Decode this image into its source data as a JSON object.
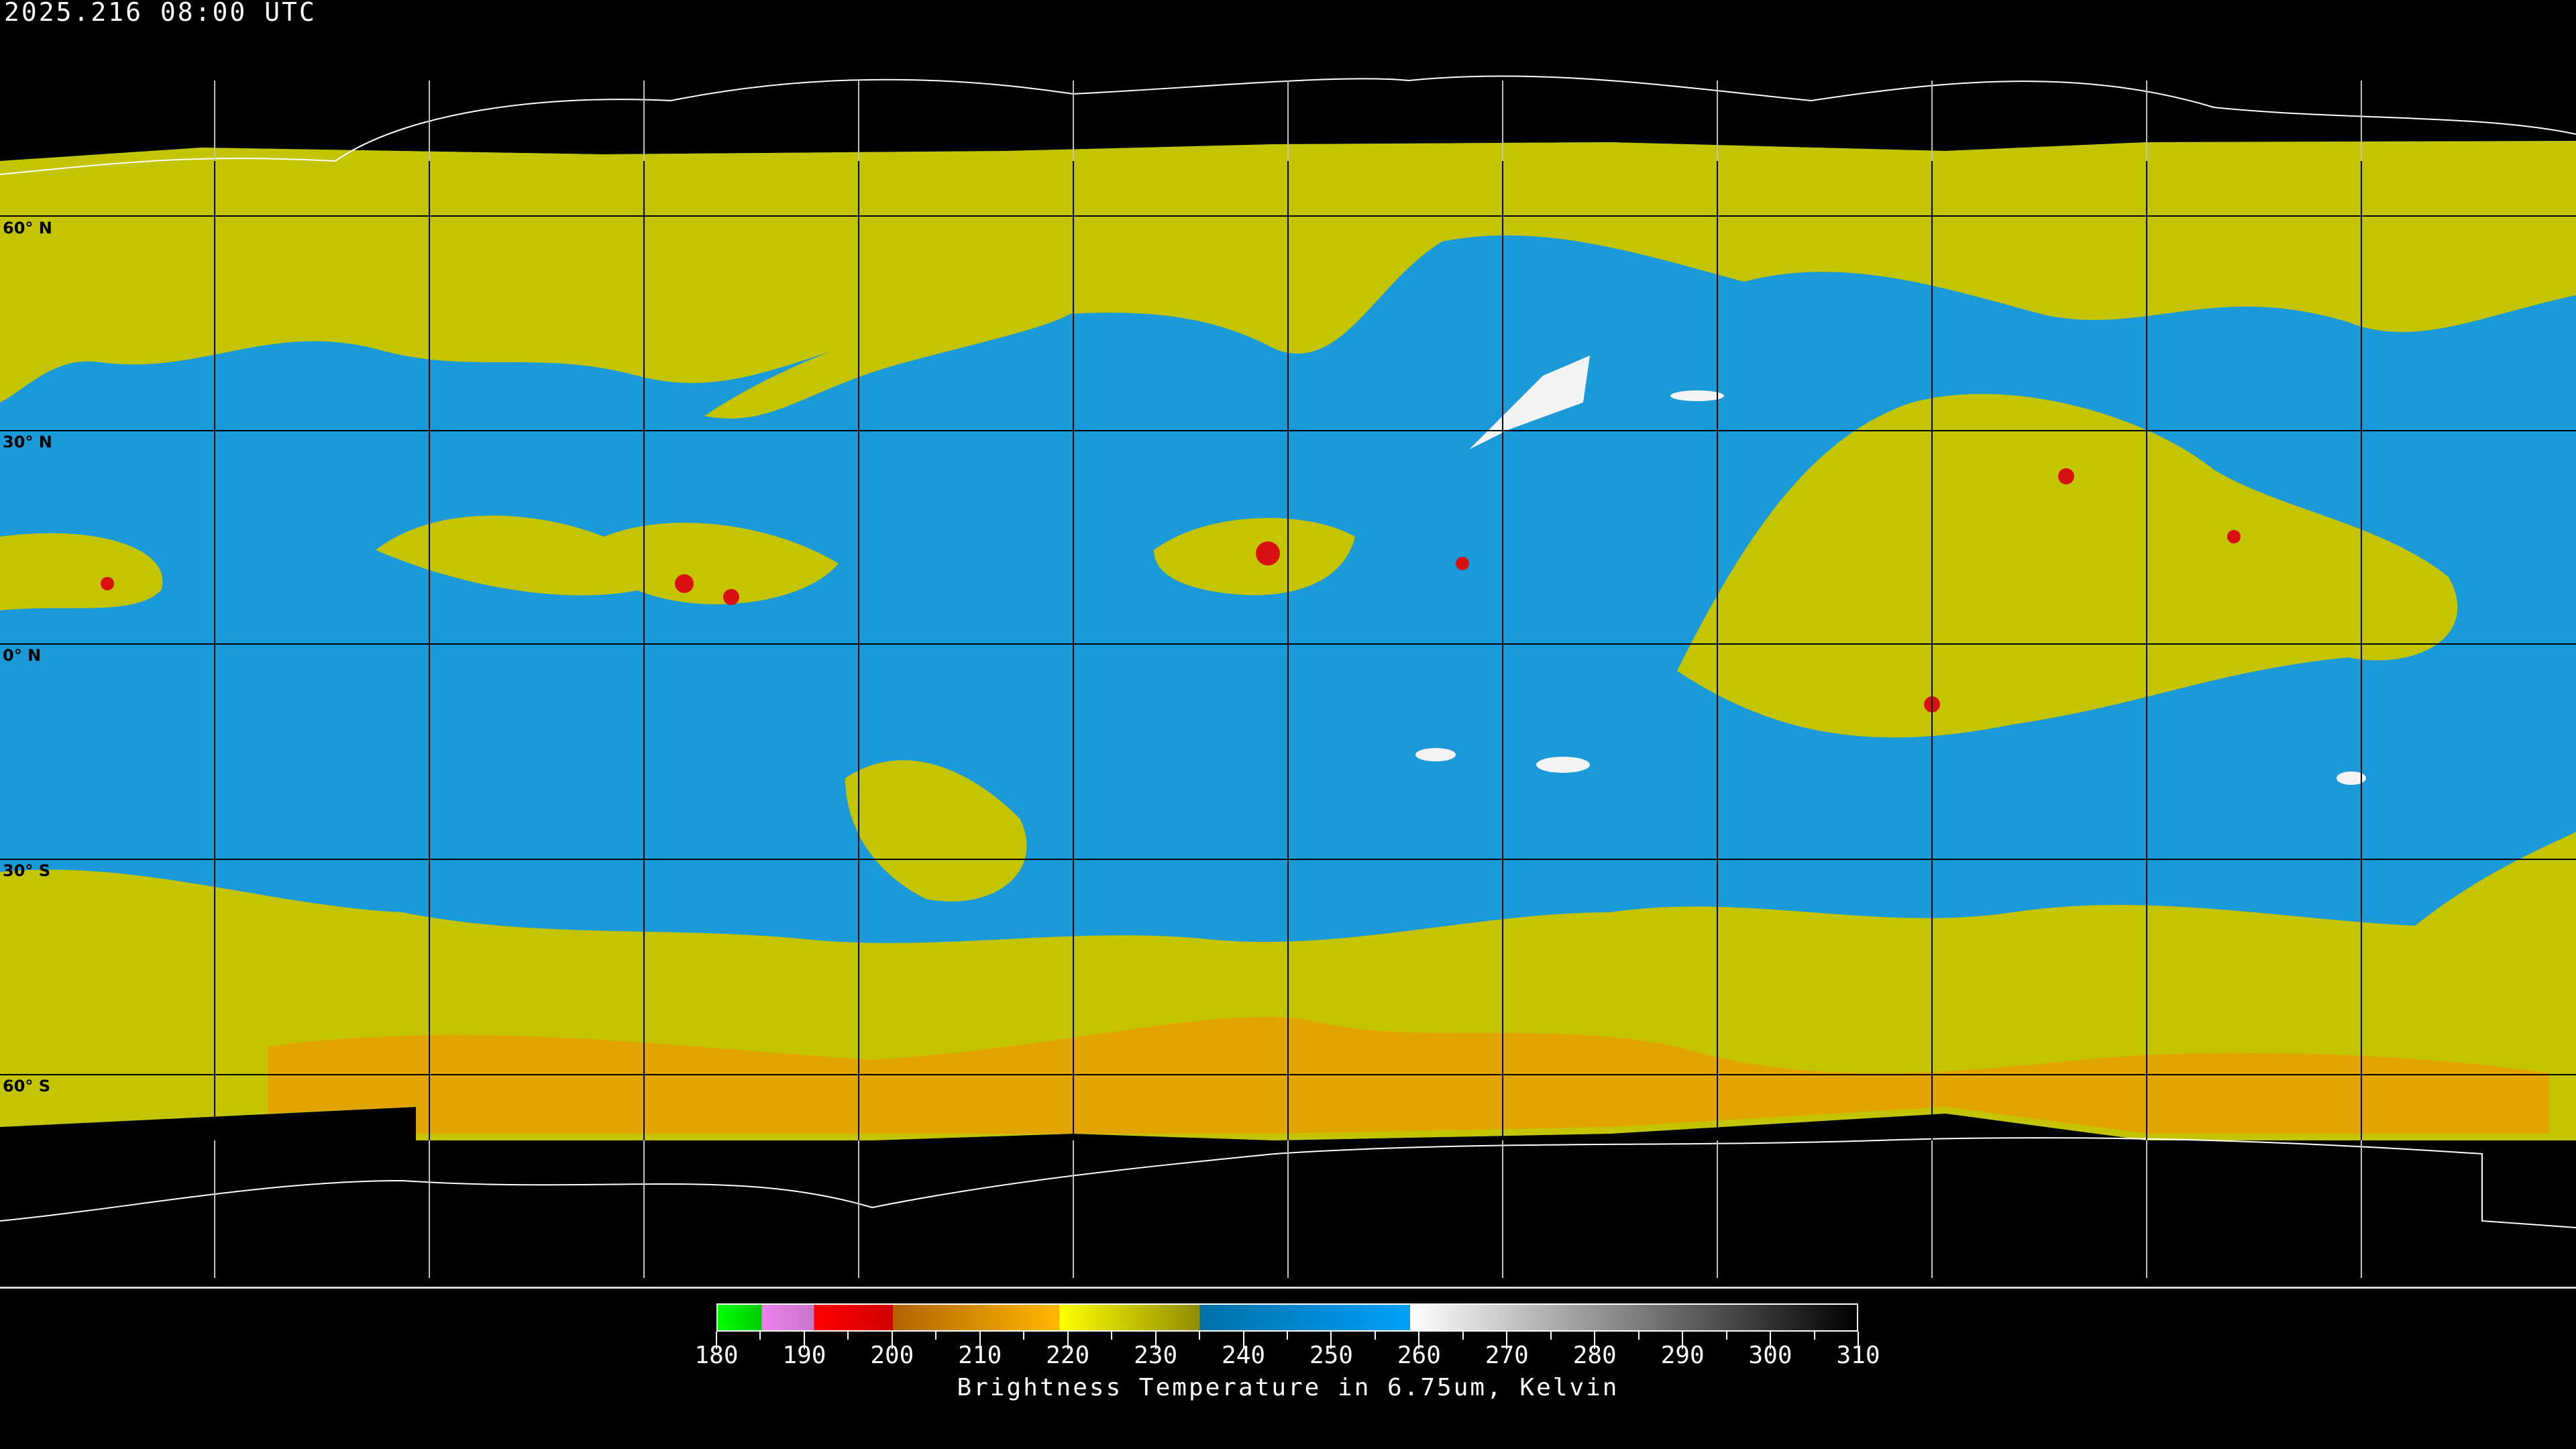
{
  "timestamp": "2025.216 08:00 UTC",
  "latitude_labels": [
    "60° N",
    "30° N",
    "0° N",
    "30° S",
    "60° S"
  ],
  "colorbar": {
    "title": "Brightness Temperature in 6.75um, Kelvin",
    "min": 180,
    "max": 310,
    "tick_labels": [
      "180",
      "190",
      "200",
      "210",
      "220",
      "230",
      "240",
      "250",
      "260",
      "270",
      "280",
      "290",
      "300",
      "310"
    ],
    "segments": [
      {
        "from": 180,
        "to": 185,
        "colors": [
          "#00ff00",
          "#00cc00"
        ]
      },
      {
        "from": 185,
        "to": 191,
        "colors": [
          "#f080f0",
          "#c878c8"
        ]
      },
      {
        "from": 191,
        "to": 200,
        "colors": [
          "#ff0000",
          "#d00000"
        ]
      },
      {
        "from": 200,
        "to": 219,
        "colors": [
          "#b06400",
          "#ffb800"
        ]
      },
      {
        "from": 219,
        "to": 235,
        "colors": [
          "#ffff00",
          "#908c00"
        ]
      },
      {
        "from": 235,
        "to": 259,
        "colors": [
          "#0070a8",
          "#00a0f8"
        ]
      },
      {
        "from": 259,
        "to": 310,
        "colors": [
          "#ffffff",
          "#000000"
        ]
      }
    ]
  },
  "colors": {
    "moist": "#c8c800",
    "dry": "#1a9ad8",
    "cold": "#e8a000",
    "deep_convection": "#d81010"
  }
}
